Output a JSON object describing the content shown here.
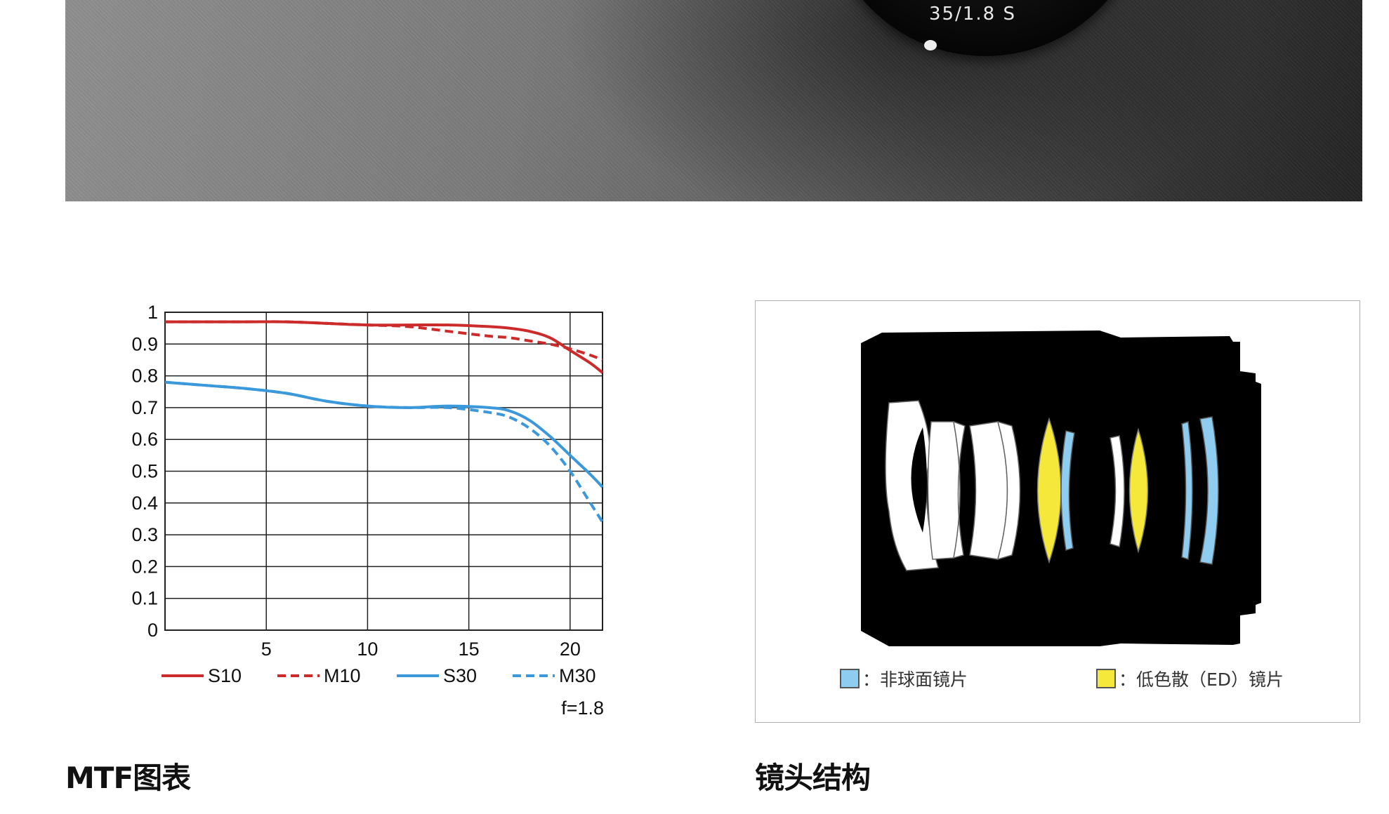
{
  "hero": {
    "lens_marking": "35/1.8 S"
  },
  "chart_data": {
    "type": "line",
    "x": [
      0,
      2,
      4,
      6,
      8,
      10,
      12,
      14,
      16,
      17,
      18,
      19,
      20,
      21,
      21.6
    ],
    "xticks": [
      "5",
      "10",
      "15",
      "20"
    ],
    "yticks": [
      "1",
      "0.9",
      "0.8",
      "0.7",
      "0.6",
      "0.5",
      "0.4",
      "0.3",
      "0.2",
      "0.1",
      "0"
    ],
    "xlim": [
      0,
      21.6
    ],
    "ylim": [
      0,
      1
    ],
    "grid": true,
    "legend_position": "bottom",
    "series": [
      {
        "name": "S10",
        "color": "#cc2b2b",
        "dashed": false,
        "values": [
          0.97,
          0.97,
          0.97,
          0.97,
          0.965,
          0.96,
          0.96,
          0.96,
          0.955,
          0.95,
          0.94,
          0.92,
          0.88,
          0.84,
          0.81
        ]
      },
      {
        "name": "M10",
        "color": "#cc2b2b",
        "dashed": true,
        "values": [
          0.97,
          0.97,
          0.97,
          0.97,
          0.965,
          0.96,
          0.955,
          0.94,
          0.925,
          0.92,
          0.91,
          0.9,
          0.885,
          0.865,
          0.85
        ]
      },
      {
        "name": "S30",
        "color": "#3a98db",
        "dashed": false,
        "values": [
          0.78,
          0.77,
          0.76,
          0.745,
          0.72,
          0.705,
          0.7,
          0.705,
          0.7,
          0.69,
          0.66,
          0.61,
          0.55,
          0.49,
          0.45
        ]
      },
      {
        "name": "M30",
        "color": "#3a98db",
        "dashed": true,
        "values": [
          0.78,
          0.77,
          0.76,
          0.745,
          0.72,
          0.705,
          0.7,
          0.7,
          0.685,
          0.67,
          0.635,
          0.58,
          0.5,
          0.4,
          0.34
        ]
      }
    ],
    "annotation": "f=1.8"
  },
  "lens_legend": {
    "aspherical": {
      "label": "：非球面镜片",
      "color": "#8fcdf0"
    },
    "ed": {
      "label": "：低色散（ED）镜片",
      "color": "#f5e83a"
    }
  },
  "captions": {
    "mtf": "MTF图表",
    "construction": "镜头结构"
  }
}
